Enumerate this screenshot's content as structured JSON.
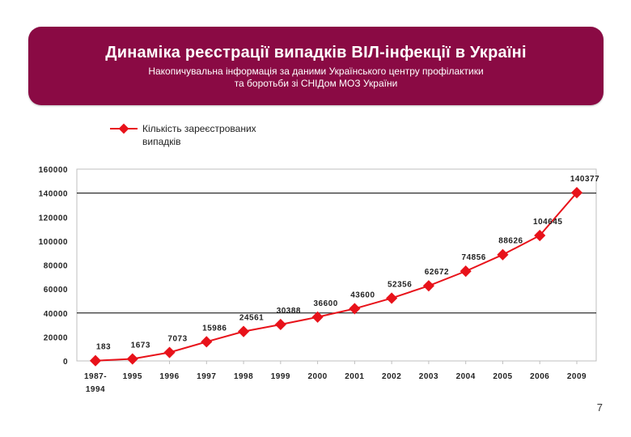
{
  "header": {
    "title": "Динаміка реєстрації випадків ВІЛ-інфекції в Україні",
    "subtitle_line1": "Накопичувальна інформація за даними Українського центру профілактики",
    "subtitle_line2": "та боротьби зі СНІДом МОЗ України",
    "background_color": "#8a0a44"
  },
  "page_number": "7",
  "chart_data": {
    "type": "line",
    "title": "",
    "xlabel": "",
    "ylabel": "",
    "ylim": [
      0,
      160000
    ],
    "yticks": [
      "0",
      "20000",
      "40000",
      "60000",
      "80000",
      "100000",
      "120000",
      "140000",
      "160000"
    ],
    "categories": [
      [
        "1987-",
        "1994"
      ],
      [
        "1995"
      ],
      [
        "1996"
      ],
      [
        "1997"
      ],
      [
        "1998"
      ],
      [
        "1999"
      ],
      [
        "2000"
      ],
      [
        "2001"
      ],
      [
        "2002"
      ],
      [
        "2003"
      ],
      [
        "2004"
      ],
      [
        "2005"
      ],
      [
        "2006"
      ],
      [
        "2009"
      ]
    ],
    "series": [
      {
        "name_line1": "Кількість зареєстрованих",
        "name_line2": "випадків",
        "color": "#e8121a",
        "values": [
          183,
          1673,
          7073,
          15986,
          24561,
          30388,
          36600,
          43600,
          52356,
          62672,
          74856,
          88626,
          104645,
          140377
        ],
        "labels": [
          "183",
          "1673",
          "7073",
          "15986",
          "24561",
          "30388",
          "36600",
          "43600",
          "52356",
          "62672",
          "74856",
          "88626",
          "104645",
          "140377"
        ]
      }
    ],
    "legend_position": "top-left",
    "gridlines_at": [
      40000,
      140000
    ]
  }
}
